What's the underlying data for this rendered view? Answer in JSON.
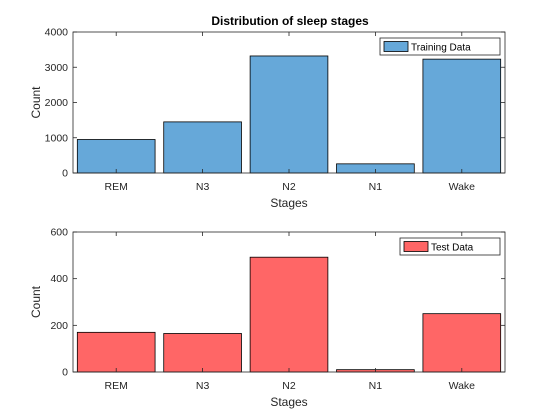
{
  "figure": {
    "title": "Distribution of sleep stages",
    "colors": {
      "training": "#66a8d9",
      "test": "#ff6666",
      "axis": "#262626"
    }
  },
  "chart_data": [
    {
      "type": "bar",
      "title": "Distribution of sleep stages",
      "xlabel": "Stages",
      "ylabel": "Count",
      "categories": [
        "REM",
        "N3",
        "N2",
        "N1",
        "Wake"
      ],
      "series": [
        {
          "name": "Training Data",
          "values": [
            950,
            1450,
            3320,
            260,
            3230
          ],
          "color": "#66a8d9"
        }
      ],
      "ylim": [
        0,
        4000
      ],
      "yticks": [
        0,
        1000,
        2000,
        3000,
        4000
      ],
      "legend": "top-right",
      "grid": false
    },
    {
      "type": "bar",
      "title": "",
      "xlabel": "Stages",
      "ylabel": "Count",
      "categories": [
        "REM",
        "N3",
        "N2",
        "N1",
        "Wake"
      ],
      "series": [
        {
          "name": "Test Data",
          "values": [
            170,
            165,
            492,
            10,
            250
          ],
          "color": "#ff6666"
        }
      ],
      "ylim": [
        0,
        600
      ],
      "yticks": [
        0,
        200,
        400,
        600
      ],
      "legend": "top-right",
      "grid": false
    }
  ]
}
